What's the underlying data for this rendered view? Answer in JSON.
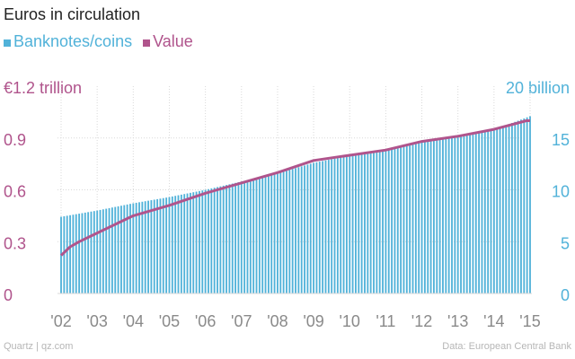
{
  "colors": {
    "bars": "#51b2d9",
    "line": "#b0548c",
    "grid": "#d9d9d9",
    "xtick": "#8a8a8a",
    "title": "#222222",
    "footer": "#b6b6b6"
  },
  "chart_data": {
    "type": "bar+line",
    "title": "Euros in circulation",
    "legend": [
      "Banknotes/coins",
      "Value"
    ],
    "legend_position": "top-left",
    "grid": true,
    "x_ticks": [
      "'02",
      "'03",
      "'04",
      "'05",
      "'06",
      "'07",
      "'08",
      "'09",
      "'10",
      "'11",
      "'12",
      "'13",
      "'14",
      "'15"
    ],
    "y_left": {
      "ticks": [
        "0",
        "0.3",
        "0.6",
        "0.9",
        "€1.2 trillion"
      ],
      "range": [
        0,
        1.2
      ]
    },
    "y_right": {
      "ticks": [
        "0",
        "5",
        "10",
        "15",
        "20 billion"
      ],
      "range": [
        0,
        20
      ]
    },
    "x_range": [
      2001.9,
      2015.05
    ],
    "series": [
      {
        "name": "Banknotes/coins",
        "type": "bar",
        "axis": "right",
        "x": [
          2002,
          2003,
          2004,
          2005,
          2006,
          2007,
          2008,
          2009,
          2010,
          2011,
          2012,
          2013,
          2014,
          2015
        ],
        "values": [
          7.4,
          8.0,
          8.7,
          9.3,
          10.0,
          10.8,
          11.6,
          12.6,
          13.3,
          13.9,
          14.6,
          15.1,
          15.8,
          17.1
        ]
      },
      {
        "name": "Value",
        "type": "line",
        "axis": "left",
        "x": [
          2002,
          2002.25,
          2002.5,
          2003,
          2004,
          2005,
          2006,
          2007,
          2008,
          2009,
          2010,
          2011,
          2012,
          2013,
          2014,
          2014.9,
          2015
        ],
        "values": [
          0.22,
          0.27,
          0.3,
          0.35,
          0.45,
          0.51,
          0.58,
          0.64,
          0.7,
          0.77,
          0.8,
          0.83,
          0.88,
          0.91,
          0.95,
          1.0,
          1.0
        ]
      }
    ]
  },
  "footer": {
    "source_left": "Quartz | qz.com",
    "source_right": "Data: European Central Bank"
  }
}
